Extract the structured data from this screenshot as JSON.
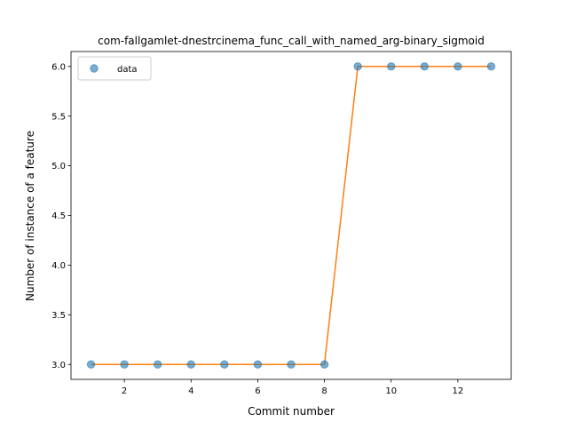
{
  "chart_data": {
    "type": "line",
    "title": "com-fallgamlet-dnestrcinema_func_call_with_named_arg-binary_sigmoid",
    "xlabel": "Commit number",
    "ylabel": "Number of instance of a feature",
    "xlim": [
      0.4,
      13.6
    ],
    "ylim": [
      2.85,
      6.15
    ],
    "xticks": [
      2,
      4,
      6,
      8,
      10,
      12
    ],
    "xtick_labels": [
      "2",
      "4",
      "6",
      "8",
      "10",
      "12"
    ],
    "yticks": [
      3.0,
      3.5,
      4.0,
      4.5,
      5.0,
      5.5,
      6.0
    ],
    "ytick_labels": [
      "3.0",
      "3.5",
      "4.0",
      "4.5",
      "5.0",
      "5.5",
      "6.0"
    ],
    "grid": false,
    "legend": {
      "position": "upper-left",
      "entries": [
        "data"
      ]
    },
    "series": [
      {
        "name": "data",
        "kind": "scatter",
        "color": "#1f77b4",
        "x": [
          1,
          2,
          3,
          4,
          5,
          6,
          7,
          8,
          9,
          10,
          11,
          12,
          13
        ],
        "y": [
          3,
          3,
          3,
          3,
          3,
          3,
          3,
          3,
          6,
          6,
          6,
          6,
          6
        ]
      },
      {
        "kind": "line",
        "color": "#ff7f0e",
        "x": [
          1,
          2,
          3,
          4,
          5,
          6,
          7,
          8,
          9,
          10,
          11,
          12,
          13
        ],
        "y": [
          3,
          3,
          3,
          3,
          3,
          3,
          3,
          3,
          6,
          6,
          6,
          6,
          6
        ]
      }
    ]
  }
}
